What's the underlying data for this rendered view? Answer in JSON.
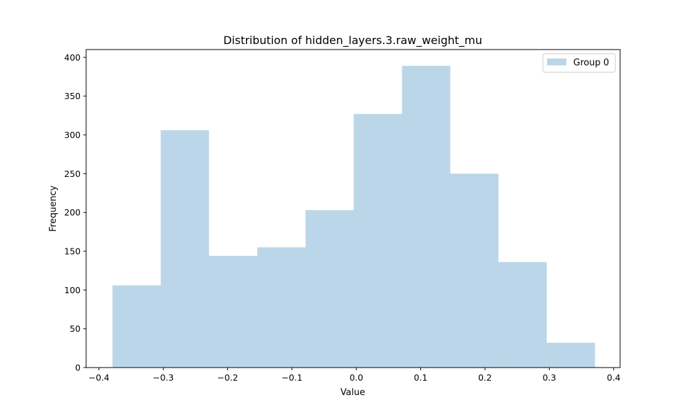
{
  "chart_data": {
    "type": "bar",
    "title": "Distribution of hidden_layers.3.raw_weight_mu",
    "xlabel": "Value",
    "ylabel": "Frequency",
    "xlim": [
      -0.42,
      0.41
    ],
    "ylim": [
      0,
      410
    ],
    "xticks": [
      -0.4,
      -0.3,
      -0.2,
      -0.1,
      0.0,
      0.1,
      0.2,
      0.3,
      0.4
    ],
    "xtick_labels": [
      "−0.4",
      "−0.3",
      "−0.2",
      "−0.1",
      "0.0",
      "0.1",
      "0.2",
      "0.3",
      "0.4"
    ],
    "yticks": [
      0,
      50,
      100,
      150,
      200,
      250,
      300,
      350,
      400
    ],
    "ytick_labels": [
      "0",
      "50",
      "100",
      "150",
      "200",
      "250",
      "300",
      "350",
      "400"
    ],
    "bin_edges": [
      -0.379,
      -0.304,
      -0.229,
      -0.154,
      -0.079,
      -0.004,
      0.071,
      0.146,
      0.221,
      0.296,
      0.371
    ],
    "series": [
      {
        "name": "Group 0",
        "values": [
          106,
          306,
          144,
          155,
          203,
          327,
          389,
          250,
          136,
          32
        ]
      }
    ],
    "grid": false,
    "legend_position": "upper-right",
    "bar_color": "#1f77b4",
    "bar_opacity": 0.3
  }
}
